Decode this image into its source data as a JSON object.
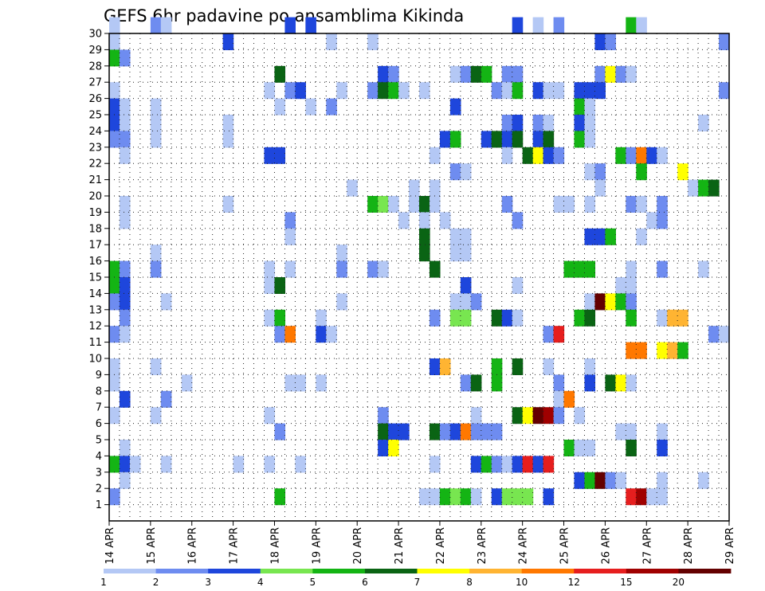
{
  "chart_data": {
    "type": "heatmap",
    "title": "GEFS 6hr padavine po ansamblima Kikinda",
    "xlabel": "",
    "ylabel": "",
    "x_ticks": [
      "14 APR",
      "15 APR",
      "16 APR",
      "17 APR",
      "18 APR",
      "19 APR",
      "20 APR",
      "21 APR",
      "22 APR",
      "23 APR",
      "24 APR",
      "25 APR",
      "26 APR",
      "27 APR",
      "28 APR",
      "29 APR"
    ],
    "x_unit": "6-hour steps from 14 APR 00z",
    "xlim": [
      0,
      60
    ],
    "y_ticks": [
      1,
      2,
      3,
      4,
      5,
      6,
      7,
      8,
      9,
      10,
      11,
      12,
      13,
      14,
      15,
      16,
      17,
      18,
      19,
      20,
      21,
      22,
      23,
      24,
      25,
      26,
      27,
      28,
      29,
      30
    ],
    "ylim": [
      0,
      30
    ],
    "grid": "dotted",
    "colorbar": {
      "levels": [
        "1",
        "2",
        "3",
        "4",
        "5",
        "6",
        "7",
        "8",
        "10",
        "12",
        "15",
        "20"
      ],
      "colors": [
        "#b4c8f5",
        "#6e8cf0",
        "#1e46dc",
        "#78e650",
        "#14b414",
        "#0a6414",
        "#ffff00",
        "#ffb432",
        "#ff7800",
        "#e61e1e",
        "#a00000",
        "#640000"
      ]
    },
    "cells": [
      [
        0,
        30,
        1
      ],
      [
        4,
        30,
        2
      ],
      [
        5,
        30,
        1
      ],
      [
        17,
        30,
        3
      ],
      [
        19,
        30,
        3
      ],
      [
        39,
        30,
        3
      ],
      [
        41,
        30,
        1
      ],
      [
        43,
        30,
        2
      ],
      [
        50,
        30,
        5
      ],
      [
        51,
        30,
        1
      ],
      [
        0,
        29,
        1
      ],
      [
        11,
        29,
        3
      ],
      [
        21,
        29,
        1
      ],
      [
        25,
        29,
        1
      ],
      [
        47,
        29,
        3
      ],
      [
        48,
        29,
        2
      ],
      [
        59,
        29,
        2
      ],
      [
        0,
        28,
        5
      ],
      [
        1,
        28,
        2
      ],
      [
        16,
        27,
        6
      ],
      [
        26,
        27,
        3
      ],
      [
        27,
        27,
        2
      ],
      [
        33,
        27,
        1
      ],
      [
        34,
        27,
        2
      ],
      [
        35,
        27,
        6
      ],
      [
        36,
        27,
        5
      ],
      [
        38,
        27,
        2
      ],
      [
        39,
        27,
        2
      ],
      [
        47,
        27,
        2
      ],
      [
        48,
        27,
        7
      ],
      [
        49,
        27,
        2
      ],
      [
        50,
        27,
        1
      ],
      [
        0,
        26,
        1
      ],
      [
        15,
        26,
        1
      ],
      [
        17,
        26,
        2
      ],
      [
        18,
        26,
        3
      ],
      [
        22,
        26,
        1
      ],
      [
        25,
        26,
        2
      ],
      [
        26,
        26,
        6
      ],
      [
        27,
        26,
        5
      ],
      [
        28,
        26,
        1
      ],
      [
        30,
        26,
        1
      ],
      [
        37,
        26,
        2
      ],
      [
        38,
        26,
        1
      ],
      [
        39,
        26,
        5
      ],
      [
        41,
        26,
        3
      ],
      [
        42,
        26,
        1
      ],
      [
        43,
        26,
        1
      ],
      [
        45,
        26,
        3
      ],
      [
        46,
        26,
        3
      ],
      [
        47,
        26,
        3
      ],
      [
        59,
        26,
        2
      ],
      [
        0,
        25,
        3
      ],
      [
        1,
        25,
        1
      ],
      [
        4,
        25,
        1
      ],
      [
        16,
        25,
        1
      ],
      [
        19,
        25,
        1
      ],
      [
        21,
        25,
        2
      ],
      [
        33,
        25,
        3
      ],
      [
        45,
        25,
        5
      ],
      [
        46,
        25,
        1
      ],
      [
        0,
        24,
        3
      ],
      [
        1,
        24,
        1
      ],
      [
        4,
        24,
        1
      ],
      [
        11,
        24,
        1
      ],
      [
        38,
        24,
        2
      ],
      [
        39,
        24,
        3
      ],
      [
        41,
        24,
        2
      ],
      [
        42,
        24,
        1
      ],
      [
        45,
        24,
        3
      ],
      [
        46,
        24,
        1
      ],
      [
        57,
        24,
        1
      ],
      [
        0,
        23,
        2
      ],
      [
        1,
        23,
        2
      ],
      [
        4,
        23,
        1
      ],
      [
        11,
        23,
        1
      ],
      [
        32,
        23,
        3
      ],
      [
        33,
        23,
        5
      ],
      [
        36,
        23,
        3
      ],
      [
        37,
        23,
        6
      ],
      [
        38,
        23,
        3
      ],
      [
        39,
        23,
        6
      ],
      [
        41,
        23,
        3
      ],
      [
        42,
        23,
        6
      ],
      [
        45,
        23,
        5
      ],
      [
        46,
        23,
        1
      ],
      [
        1,
        22,
        1
      ],
      [
        15,
        22,
        3
      ],
      [
        16,
        22,
        3
      ],
      [
        31,
        22,
        1
      ],
      [
        38,
        22,
        1
      ],
      [
        40,
        22,
        6
      ],
      [
        41,
        22,
        7
      ],
      [
        42,
        22,
        3
      ],
      [
        43,
        22,
        2
      ],
      [
        49,
        22,
        5
      ],
      [
        50,
        22,
        2
      ],
      [
        51,
        22,
        9
      ],
      [
        52,
        22,
        3
      ],
      [
        53,
        22,
        1
      ],
      [
        33,
        21,
        2
      ],
      [
        34,
        21,
        1
      ],
      [
        46,
        21,
        1
      ],
      [
        47,
        21,
        2
      ],
      [
        51,
        21,
        5
      ],
      [
        55,
        21,
        7
      ],
      [
        23,
        20,
        1
      ],
      [
        29,
        20,
        1
      ],
      [
        31,
        20,
        1
      ],
      [
        47,
        20,
        1
      ],
      [
        56,
        20,
        1
      ],
      [
        57,
        20,
        5
      ],
      [
        58,
        20,
        6
      ],
      [
        1,
        19,
        1
      ],
      [
        11,
        19,
        1
      ],
      [
        25,
        19,
        5
      ],
      [
        26,
        19,
        4
      ],
      [
        27,
        19,
        1
      ],
      [
        29,
        19,
        1
      ],
      [
        30,
        19,
        6
      ],
      [
        31,
        19,
        1
      ],
      [
        38,
        19,
        2
      ],
      [
        43,
        19,
        1
      ],
      [
        44,
        19,
        1
      ],
      [
        46,
        19,
        1
      ],
      [
        50,
        19,
        2
      ],
      [
        51,
        19,
        1
      ],
      [
        53,
        19,
        2
      ],
      [
        1,
        18,
        1
      ],
      [
        17,
        18,
        2
      ],
      [
        28,
        18,
        1
      ],
      [
        30,
        18,
        1
      ],
      [
        32,
        18,
        1
      ],
      [
        39,
        18,
        2
      ],
      [
        52,
        18,
        1
      ],
      [
        53,
        18,
        2
      ],
      [
        17,
        17,
        1
      ],
      [
        30,
        17,
        6
      ],
      [
        33,
        17,
        1
      ],
      [
        34,
        17,
        1
      ],
      [
        46,
        17,
        3
      ],
      [
        47,
        17,
        3
      ],
      [
        48,
        17,
        5
      ],
      [
        51,
        17,
        1
      ],
      [
        4,
        16,
        1
      ],
      [
        22,
        16,
        1
      ],
      [
        30,
        16,
        6
      ],
      [
        33,
        16,
        1
      ],
      [
        34,
        16,
        1
      ],
      [
        0,
        15,
        5
      ],
      [
        1,
        15,
        2
      ],
      [
        4,
        15,
        2
      ],
      [
        15,
        15,
        1
      ],
      [
        17,
        15,
        1
      ],
      [
        22,
        15,
        2
      ],
      [
        25,
        15,
        2
      ],
      [
        26,
        15,
        1
      ],
      [
        31,
        15,
        6
      ],
      [
        44,
        15,
        5
      ],
      [
        45,
        15,
        5
      ],
      [
        46,
        15,
        5
      ],
      [
        50,
        15,
        1
      ],
      [
        53,
        15,
        2
      ],
      [
        57,
        15,
        1
      ],
      [
        0,
        14,
        5
      ],
      [
        1,
        14,
        3
      ],
      [
        15,
        14,
        1
      ],
      [
        16,
        14,
        6
      ],
      [
        34,
        14,
        3
      ],
      [
        39,
        14,
        1
      ],
      [
        49,
        14,
        1
      ],
      [
        50,
        14,
        1
      ],
      [
        0,
        13,
        2
      ],
      [
        1,
        13,
        3
      ],
      [
        5,
        13,
        1
      ],
      [
        22,
        13,
        1
      ],
      [
        33,
        13,
        1
      ],
      [
        34,
        13,
        1
      ],
      [
        35,
        13,
        2
      ],
      [
        46,
        13,
        1
      ],
      [
        47,
        13,
        12
      ],
      [
        48,
        13,
        7
      ],
      [
        49,
        13,
        5
      ],
      [
        50,
        13,
        2
      ],
      [
        1,
        12,
        2
      ],
      [
        15,
        12,
        1
      ],
      [
        16,
        12,
        5
      ],
      [
        20,
        12,
        1
      ],
      [
        31,
        12,
        2
      ],
      [
        33,
        12,
        4
      ],
      [
        34,
        12,
        4
      ],
      [
        37,
        12,
        6
      ],
      [
        38,
        12,
        3
      ],
      [
        39,
        12,
        1
      ],
      [
        45,
        12,
        5
      ],
      [
        46,
        12,
        6
      ],
      [
        50,
        12,
        5
      ],
      [
        53,
        12,
        1
      ],
      [
        54,
        12,
        8
      ],
      [
        55,
        12,
        8
      ],
      [
        0,
        11,
        2
      ],
      [
        1,
        11,
        1
      ],
      [
        16,
        11,
        2
      ],
      [
        17,
        11,
        9
      ],
      [
        20,
        11,
        3
      ],
      [
        21,
        11,
        1
      ],
      [
        42,
        11,
        2
      ],
      [
        43,
        11,
        10
      ],
      [
        58,
        11,
        2
      ],
      [
        59,
        11,
        1
      ],
      [
        50,
        10,
        9
      ],
      [
        51,
        10,
        9
      ],
      [
        53,
        10,
        7
      ],
      [
        54,
        10,
        8
      ],
      [
        55,
        10,
        5
      ],
      [
        0,
        9,
        1
      ],
      [
        4,
        9,
        1
      ],
      [
        31,
        9,
        3
      ],
      [
        32,
        9,
        8
      ],
      [
        37,
        9,
        5
      ],
      [
        39,
        9,
        6
      ],
      [
        42,
        9,
        1
      ],
      [
        46,
        9,
        1
      ],
      [
        0,
        8,
        1
      ],
      [
        7,
        8,
        1
      ],
      [
        17,
        8,
        1
      ],
      [
        18,
        8,
        1
      ],
      [
        20,
        8,
        1
      ],
      [
        34,
        8,
        2
      ],
      [
        35,
        8,
        6
      ],
      [
        37,
        8,
        5
      ],
      [
        43,
        8,
        2
      ],
      [
        46,
        8,
        3
      ],
      [
        48,
        8,
        6
      ],
      [
        49,
        8,
        7
      ],
      [
        50,
        8,
        1
      ],
      [
        1,
        7,
        3
      ],
      [
        5,
        7,
        2
      ],
      [
        43,
        7,
        1
      ],
      [
        44,
        7,
        9
      ],
      [
        0,
        6,
        1
      ],
      [
        4,
        6,
        1
      ],
      [
        15,
        6,
        1
      ],
      [
        26,
        6,
        2
      ],
      [
        35,
        6,
        1
      ],
      [
        39,
        6,
        6
      ],
      [
        40,
        6,
        7
      ],
      [
        41,
        6,
        12
      ],
      [
        42,
        6,
        11
      ],
      [
        43,
        6,
        2
      ],
      [
        45,
        6,
        1
      ],
      [
        16,
        5,
        2
      ],
      [
        26,
        5,
        6
      ],
      [
        27,
        5,
        3
      ],
      [
        28,
        5,
        3
      ],
      [
        31,
        5,
        6
      ],
      [
        32,
        5,
        2
      ],
      [
        33,
        5,
        3
      ],
      [
        34,
        5,
        9
      ],
      [
        35,
        5,
        2
      ],
      [
        36,
        5,
        2
      ],
      [
        37,
        5,
        2
      ],
      [
        49,
        5,
        1
      ],
      [
        50,
        5,
        1
      ],
      [
        53,
        5,
        1
      ],
      [
        1,
        4,
        1
      ],
      [
        26,
        4,
        3
      ],
      [
        27,
        4,
        7
      ],
      [
        44,
        4,
        5
      ],
      [
        45,
        4,
        1
      ],
      [
        46,
        4,
        1
      ],
      [
        50,
        4,
        6
      ],
      [
        53,
        4,
        3
      ],
      [
        0,
        3,
        5
      ],
      [
        1,
        3,
        3
      ],
      [
        2,
        3,
        1
      ],
      [
        5,
        3,
        1
      ],
      [
        12,
        3,
        1
      ],
      [
        15,
        3,
        1
      ],
      [
        18,
        3,
        1
      ],
      [
        31,
        3,
        1
      ],
      [
        35,
        3,
        3
      ],
      [
        36,
        3,
        5
      ],
      [
        37,
        3,
        2
      ],
      [
        38,
        3,
        1
      ],
      [
        39,
        3,
        3
      ],
      [
        40,
        3,
        10
      ],
      [
        41,
        3,
        3
      ],
      [
        42,
        3,
        10
      ],
      [
        1,
        2,
        1
      ],
      [
        45,
        2,
        3
      ],
      [
        46,
        2,
        5
      ],
      [
        47,
        2,
        12
      ],
      [
        48,
        2,
        2
      ],
      [
        49,
        2,
        1
      ],
      [
        53,
        2,
        1
      ],
      [
        57,
        2,
        1
      ],
      [
        0,
        1,
        2
      ],
      [
        16,
        1,
        5
      ],
      [
        30,
        1,
        1
      ],
      [
        31,
        1,
        1
      ],
      [
        32,
        1,
        5
      ],
      [
        33,
        1,
        4
      ],
      [
        34,
        1,
        5
      ],
      [
        35,
        1,
        1
      ],
      [
        37,
        1,
        3
      ],
      [
        38,
        1,
        4
      ],
      [
        39,
        1,
        4
      ],
      [
        40,
        1,
        4
      ],
      [
        42,
        1,
        3
      ],
      [
        50,
        1,
        10
      ],
      [
        51,
        1,
        11
      ],
      [
        52,
        1,
        1
      ],
      [
        53,
        1,
        1
      ]
    ]
  }
}
